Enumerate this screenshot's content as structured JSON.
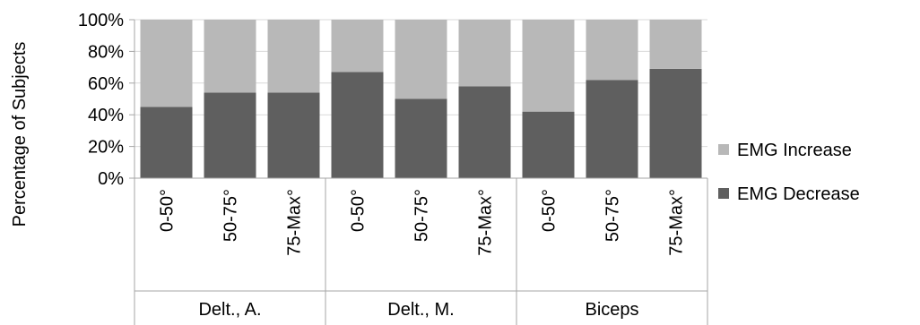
{
  "chart_data": {
    "type": "bar",
    "stacked": true,
    "percent_stacked": true,
    "groups": [
      "Delt., A.",
      "Delt., M.",
      "Biceps"
    ],
    "categories": [
      "0-50°",
      "50-75°",
      "75-Max°",
      "0-50°",
      "50-75°",
      "75-Max°",
      "0-50°",
      "50-75°",
      "75-Max°"
    ],
    "category_group": [
      0,
      0,
      0,
      1,
      1,
      1,
      2,
      2,
      2
    ],
    "series": [
      {
        "name": "EMG Decrease",
        "color": "#5f5f5f",
        "values": [
          45,
          54,
          54,
          67,
          50,
          58,
          42,
          62,
          69
        ]
      },
      {
        "name": "EMG Increase",
        "color": "#b8b8b8",
        "values": [
          55,
          46,
          46,
          33,
          50,
          42,
          58,
          38,
          31
        ]
      }
    ],
    "ylabel": "Percentage of Subjects",
    "yticks": [
      "0%",
      "20%",
      "40%",
      "60%",
      "80%",
      "100%"
    ],
    "ylim": [
      0,
      100
    ],
    "grid": true,
    "legend": {
      "position": "right",
      "entries": [
        "EMG Increase",
        "EMG Decrease"
      ]
    }
  }
}
